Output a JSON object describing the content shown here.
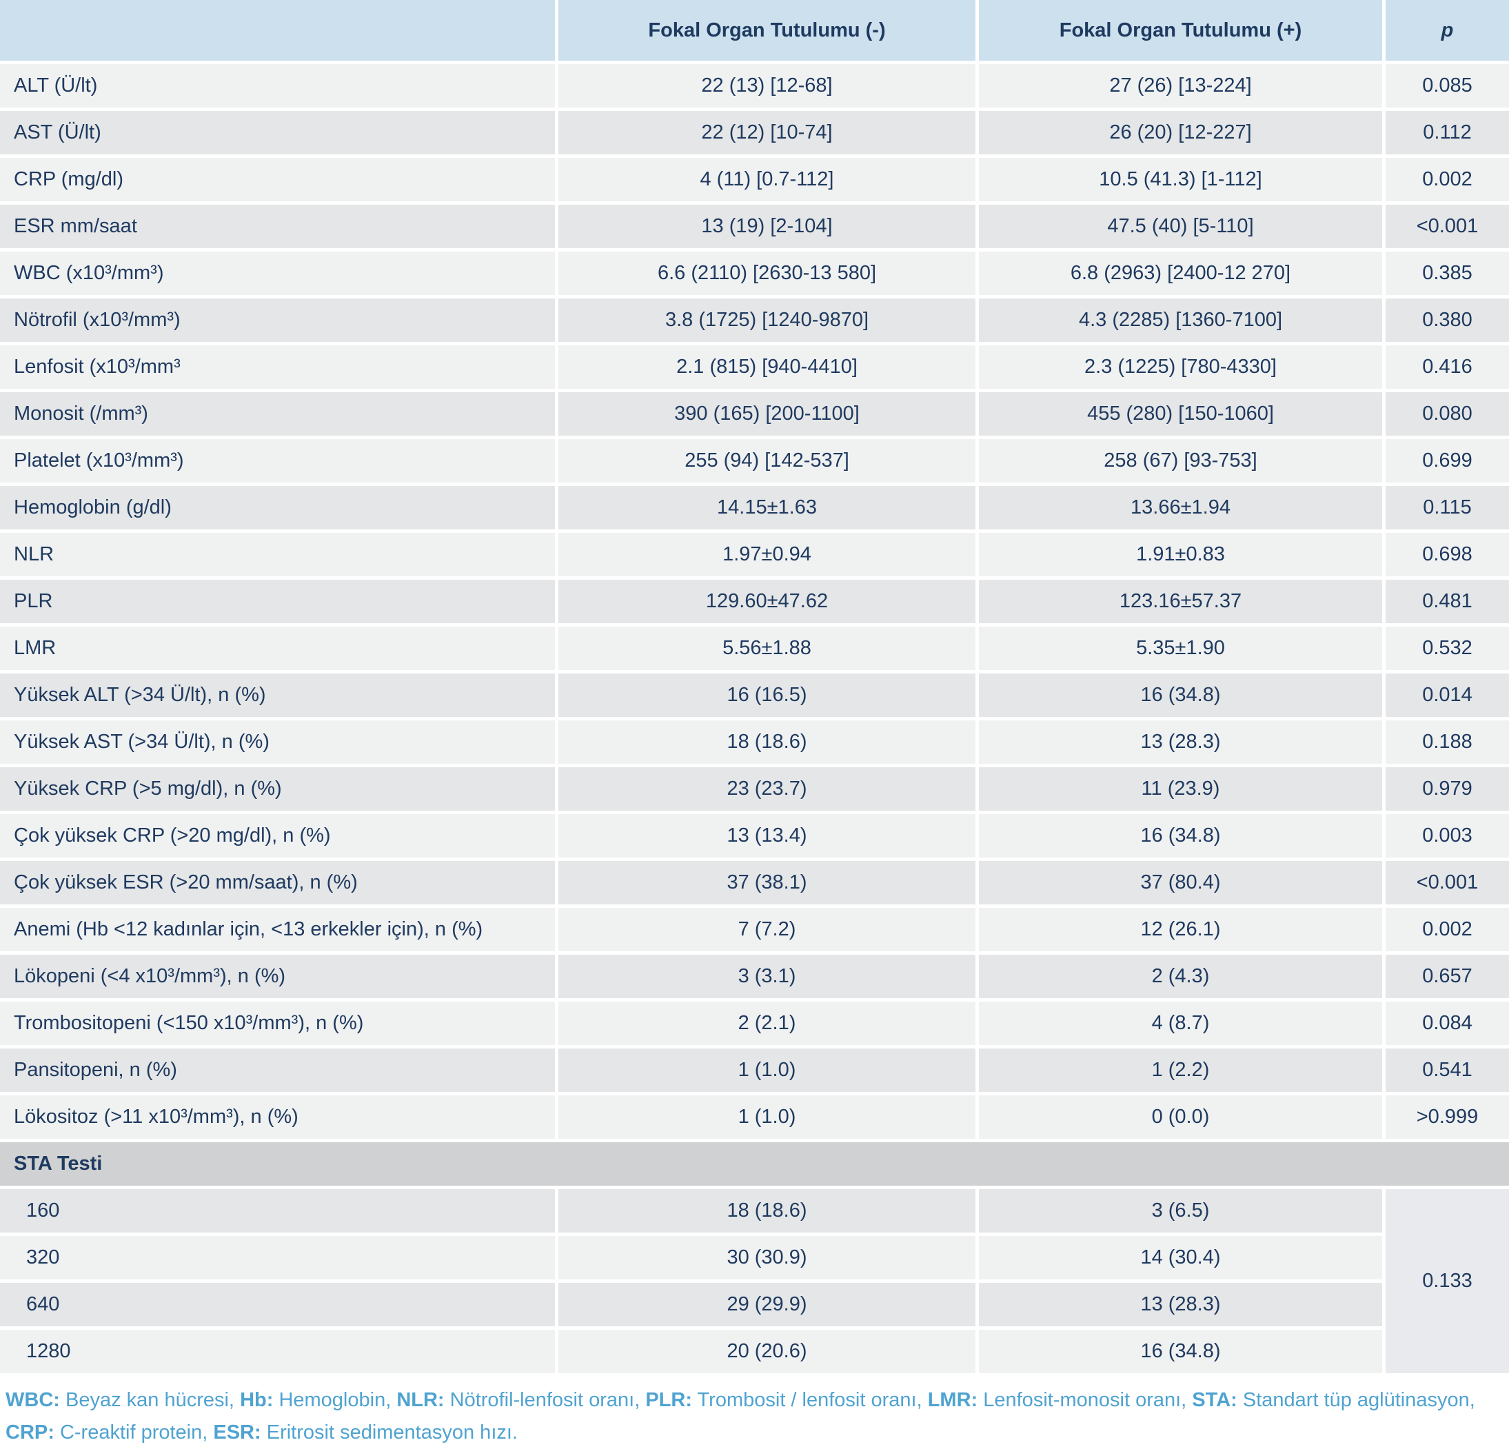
{
  "colors": {
    "header_bg": "#cce0ee",
    "row_light": "#f0f1f1",
    "row_dark": "#e5e6e7",
    "section_bg": "#d0d1d2",
    "p_span_bg": "#e9eaed",
    "text_navy": "#1f3a60",
    "footnote_blue": "#4fa3d1"
  },
  "header": {
    "col_label": "",
    "col_neg": "Fokal Organ Tutulumu (-)",
    "col_pos": "Fokal Organ Tutulumu (+)",
    "col_p": "p"
  },
  "rows": [
    {
      "label": "ALT (Ü/lt)",
      "neg": "22 (13) [12-68]",
      "pos": "27 (26) [13-224]",
      "p": "0.085"
    },
    {
      "label": "AST (Ü/lt)",
      "neg": "22 (12) [10-74]",
      "pos": "26 (20) [12-227]",
      "p": "0.112"
    },
    {
      "label": "CRP (mg/dl)",
      "neg": "4 (11) [0.7-112]",
      "pos": "10.5 (41.3) [1-112]",
      "p": "0.002"
    },
    {
      "label": "ESR mm/saat",
      "neg": "13 (19) [2-104]",
      "pos": "47.5 (40) [5-110]",
      "p": "<0.001"
    },
    {
      "label": "WBC (x10³/mm³)",
      "neg": "6.6 (2110) [2630-13 580]",
      "pos": "6.8 (2963) [2400-12 270]",
      "p": "0.385"
    },
    {
      "label": "Nötrofil (x10³/mm³)",
      "neg": "3.8 (1725) [1240-9870]",
      "pos": "4.3 (2285) [1360-7100]",
      "p": "0.380"
    },
    {
      "label": "Lenfosit (x10³/mm³",
      "neg": "2.1 (815) [940-4410]",
      "pos": "2.3 (1225) [780-4330]",
      "p": "0.416"
    },
    {
      "label": "Monosit (/mm³)",
      "neg": "390 (165) [200-1100]",
      "pos": "455 (280) [150-1060]",
      "p": "0.080"
    },
    {
      "label": "Platelet (x10³/mm³)",
      "neg": "255 (94) [142-537]",
      "pos": "258 (67) [93-753]",
      "p": "0.699"
    },
    {
      "label": "Hemoglobin (g/dl)",
      "neg": "14.15±1.63",
      "pos": "13.66±1.94",
      "p": "0.115"
    },
    {
      "label": "NLR",
      "neg": "1.97±0.94",
      "pos": "1.91±0.83",
      "p": "0.698"
    },
    {
      "label": "PLR",
      "neg": "129.60±47.62",
      "pos": "123.16±57.37",
      "p": "0.481"
    },
    {
      "label": "LMR",
      "neg": "5.56±1.88",
      "pos": "5.35±1.90",
      "p": "0.532"
    },
    {
      "label": "Yüksek ALT (>34 Ü/lt), n (%)",
      "neg": "16 (16.5)",
      "pos": "16 (34.8)",
      "p": "0.014"
    },
    {
      "label": "Yüksek AST (>34 Ü/lt), n (%)",
      "neg": "18 (18.6)",
      "pos": "13 (28.3)",
      "p": "0.188"
    },
    {
      "label": "Yüksek CRP (>5 mg/dl), n (%)",
      "neg": "23 (23.7)",
      "pos": "11 (23.9)",
      "p": "0.979"
    },
    {
      "label": "Çok yüksek CRP (>20 mg/dl), n (%)",
      "neg": "13 (13.4)",
      "pos": "16 (34.8)",
      "p": "0.003"
    },
    {
      "label": "Çok yüksek ESR (>20 mm/saat), n (%)",
      "neg": "37 (38.1)",
      "pos": "37 (80.4)",
      "p": "<0.001"
    },
    {
      "label": "Anemi (Hb <12 kadınlar için, <13 erkekler için), n (%)",
      "neg": "7 (7.2)",
      "pos": "12 (26.1)",
      "p": "0.002"
    },
    {
      "label": "Lökopeni (<4 x10³/mm³), n (%)",
      "neg": "3 (3.1)",
      "pos": "2 (4.3)",
      "p": "0.657"
    },
    {
      "label": "Trombositopeni (<150 x10³/mm³), n (%)",
      "neg": "2 (2.1)",
      "pos": "4 (8.7)",
      "p": "0.084"
    },
    {
      "label": "Pansitopeni, n (%)",
      "neg": "1 (1.0)",
      "pos": "1 (2.2)",
      "p": "0.541"
    },
    {
      "label": "Lökositoz (>11 x10³/mm³), n (%)",
      "neg": "1 (1.0)",
      "pos": "0 (0.0)",
      "p": ">0.999"
    }
  ],
  "sta": {
    "section_label": "STA Testi",
    "p": "0.133",
    "rows": [
      {
        "label": "160",
        "neg": "18 (18.6)",
        "pos": "3 (6.5)"
      },
      {
        "label": "320",
        "neg": "30 (30.9)",
        "pos": "14 (30.4)"
      },
      {
        "label": "640",
        "neg": "29 (29.9)",
        "pos": "13 (28.3)"
      },
      {
        "label": "1280",
        "neg": "20 (20.6)",
        "pos": "16 (34.8)"
      }
    ]
  },
  "footnote": {
    "parts": [
      {
        "abbr": "WBC:",
        "rest": " Beyaz kan hücresi, "
      },
      {
        "abbr": "Hb:",
        "rest": " Hemoglobin, "
      },
      {
        "abbr": "NLR:",
        "rest": " Nötrofil-lenfosit oranı, "
      },
      {
        "abbr": "PLR:",
        "rest": " Trombosit / lenfosit oranı, "
      },
      {
        "abbr": "LMR:",
        "rest": " Lenfosit-monosit oranı, "
      },
      {
        "abbr": "STA:",
        "rest": " Standart tüp aglütinasyon,"
      },
      {
        "abbr": "CRP:",
        "rest": " C-reaktif protein, "
      },
      {
        "abbr": "ESR:",
        "rest": " Eritrosit sedimentasyon hızı."
      }
    ]
  }
}
